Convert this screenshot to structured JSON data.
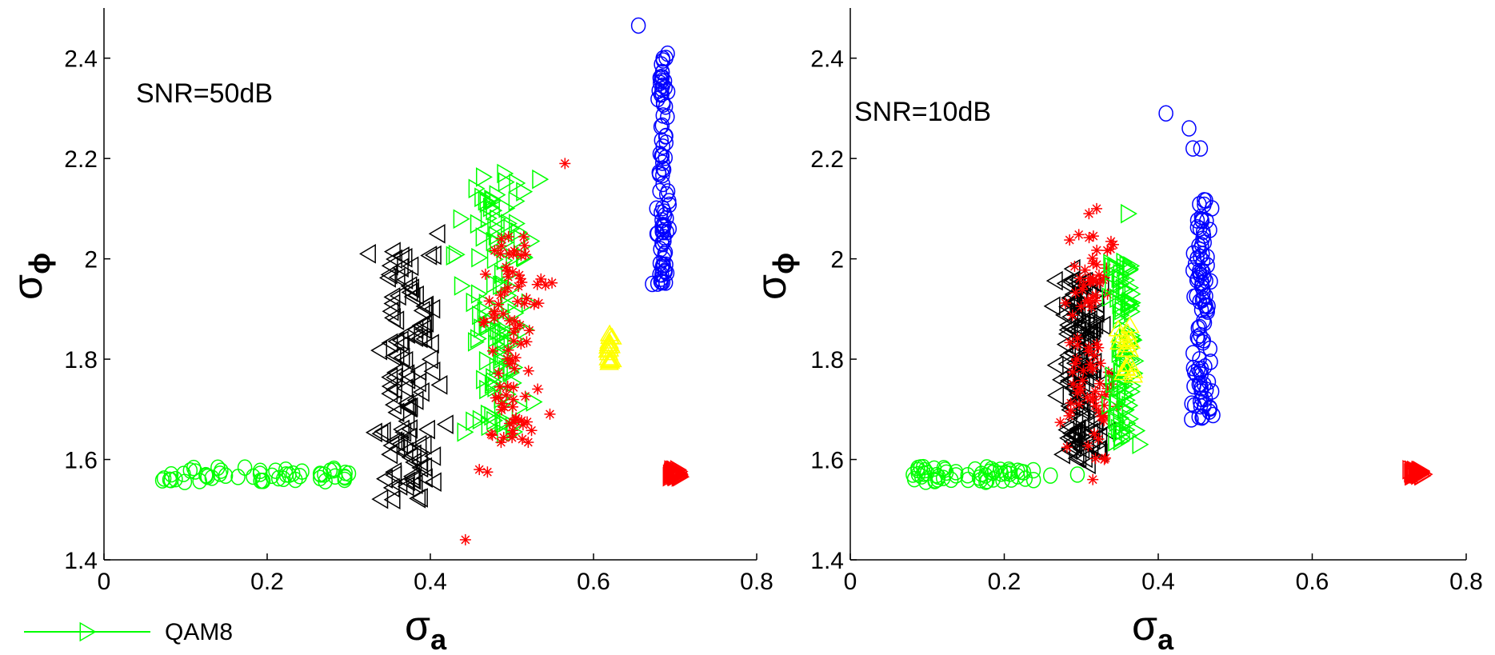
{
  "chart_data": [
    {
      "type": "scatter",
      "annotation": "SNR=50dB",
      "xlabel": "σ",
      "xlabel_sub": "a",
      "ylabel": "σ",
      "ylabel_sub": "ϕ",
      "xlim": [
        0,
        0.8
      ],
      "ylim": [
        1.4,
        2.5
      ],
      "xticks": [
        "0",
        "0.2",
        "0.4",
        "0.6",
        "0.8"
      ],
      "yticks": [
        "1.4",
        "1.6",
        "1.8",
        "2",
        "2.2",
        "2.4"
      ],
      "grid": false,
      "series": [
        {
          "marker": "circle",
          "color": "#00ff00",
          "description": "cluster",
          "cx": [
            0.07,
            0.3
          ],
          "cy": [
            1.555,
            1.585
          ],
          "n": 50,
          "points": [
            [
              0.27,
              1.57
            ],
            [
              0.3,
              1.572
            ],
            [
              0.24,
              1.567
            ]
          ]
        },
        {
          "marker": "triangle-left",
          "color": "#000000",
          "cx": [
            0.32,
            0.43
          ],
          "cy": [
            1.52,
            2.02
          ],
          "n": 110,
          "points": [
            [
              0.325,
              2.01
            ],
            [
              0.355,
              1.52
            ],
            [
              0.42,
              1.67
            ],
            [
              0.41,
              2.05
            ]
          ]
        },
        {
          "marker": "triangle-right",
          "color": "#00ff00",
          "cx": [
            0.42,
            0.54
          ],
          "cy": [
            1.65,
            2.17
          ],
          "n": 110,
          "points": [
            [
              0.49,
              2.17
            ],
            [
              0.455,
              2.14
            ],
            [
              0.47,
              1.69
            ]
          ]
        },
        {
          "marker": "star",
          "color": "#ff0000",
          "cx": [
            0.44,
            0.56
          ],
          "cy": [
            1.63,
            2.05
          ],
          "n": 90,
          "points": [
            [
              0.565,
              2.19
            ],
            [
              0.443,
              1.44
            ],
            [
              0.46,
              1.58
            ],
            [
              0.47,
              1.575
            ]
          ]
        },
        {
          "marker": "triangle-up",
          "color": "#ffff00",
          "cx": [
            0.615,
            0.625
          ],
          "cy": [
            1.79,
            1.85
          ],
          "n": 20,
          "points": []
        },
        {
          "marker": "circle",
          "color": "#0000ff",
          "cx": [
            0.675,
            0.695
          ],
          "cy": [
            1.95,
            2.42
          ],
          "n": 90,
          "points": [
            [
              0.655,
              2.465
            ],
            [
              0.672,
              1.95
            ]
          ]
        },
        {
          "marker": "triangle-right",
          "color": "#ff0000",
          "cx": [
            0.69,
            0.71
          ],
          "cy": [
            1.565,
            1.58
          ],
          "n": 40,
          "points": []
        }
      ]
    },
    {
      "type": "scatter",
      "annotation": "SNR=10dB",
      "xlabel": "σ",
      "xlabel_sub": "a",
      "ylabel": "σ",
      "ylabel_sub": "ϕ",
      "xlim": [
        0,
        0.8
      ],
      "ylim": [
        1.4,
        2.5
      ],
      "xticks": [
        "0",
        "0.2",
        "0.4",
        "0.6",
        "0.8"
      ],
      "yticks": [
        "1.4",
        "1.6",
        "1.8",
        "2",
        "2.2",
        "2.4"
      ],
      "grid": false,
      "series": [
        {
          "marker": "circle",
          "color": "#00ff00",
          "cx": [
            0.08,
            0.24
          ],
          "cy": [
            1.555,
            1.585
          ],
          "n": 55,
          "points": [
            [
              0.26,
              1.568
            ],
            [
              0.295,
              1.57
            ]
          ]
        },
        {
          "marker": "triangle-left",
          "color": "#000000",
          "cx": [
            0.26,
            0.34
          ],
          "cy": [
            1.6,
            1.96
          ],
          "n": 150,
          "points": [
            [
              0.29,
              1.98
            ],
            [
              0.31,
              1.59
            ]
          ]
        },
        {
          "marker": "star",
          "color": "#ff0000",
          "cx": [
            0.26,
            0.36
          ],
          "cy": [
            1.6,
            2.05
          ],
          "n": 90,
          "points": [
            [
              0.31,
              2.09
            ],
            [
              0.32,
              2.1
            ],
            [
              0.315,
              1.56
            ],
            [
              0.33,
              1.6
            ]
          ]
        },
        {
          "marker": "triangle-right",
          "color": "#00ff00",
          "cx": [
            0.33,
            0.38
          ],
          "cy": [
            1.63,
            2.0
          ],
          "n": 90,
          "points": [
            [
              0.36,
              2.09
            ],
            [
              0.375,
              1.63
            ]
          ]
        },
        {
          "marker": "triangle-up",
          "color": "#ffff00",
          "cx": [
            0.345,
            0.375
          ],
          "cy": [
            1.76,
            1.87
          ],
          "n": 18,
          "points": []
        },
        {
          "marker": "circle",
          "color": "#0000ff",
          "cx": [
            0.44,
            0.475
          ],
          "cy": [
            1.68,
            2.12
          ],
          "n": 100,
          "points": [
            [
              0.41,
              2.29
            ],
            [
              0.44,
              2.26
            ],
            [
              0.445,
              2.22
            ],
            [
              0.455,
              2.22
            ],
            [
              0.443,
              1.68
            ]
          ]
        },
        {
          "marker": "triangle-right",
          "color": "#ff0000",
          "cx": [
            0.72,
            0.75
          ],
          "cy": [
            1.565,
            1.58
          ],
          "n": 40,
          "points": []
        }
      ]
    }
  ],
  "legend": {
    "label": "QAM8",
    "color": "#00ff00",
    "marker": "triangle-right",
    "placement": "bottom-left"
  }
}
